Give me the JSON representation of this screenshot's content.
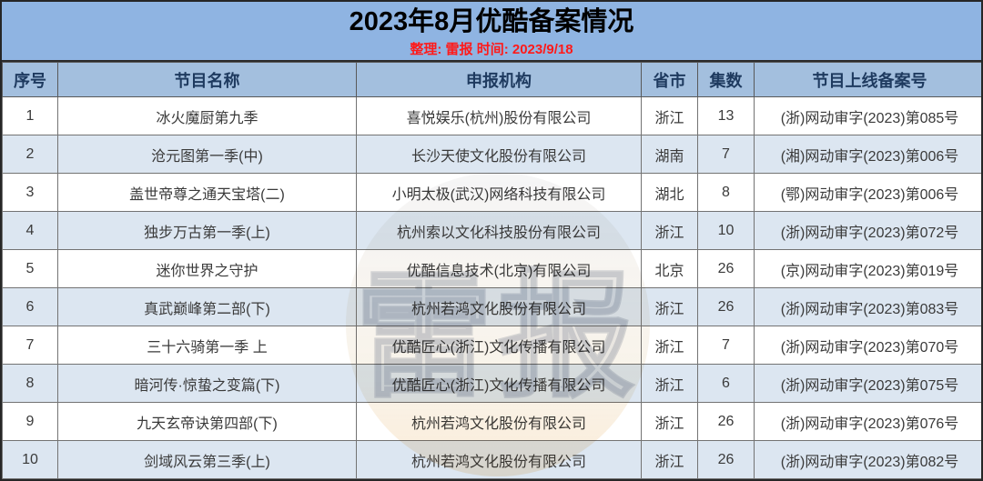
{
  "colors": {
    "title_band": "#8FB4E2",
    "header_bg": "#A3BFDE",
    "header_text": "#1E3A5F",
    "stripe": "#DCE6F1",
    "subtitle_red": "#FF1A1A"
  },
  "watermark": {
    "text": "雷报"
  },
  "chart_data": {
    "type": "table",
    "title": "2023年8月优酷备案情况",
    "subtitle": "整理: 雷报  时间: 2023/9/18",
    "columns": [
      "序号",
      "节目名称",
      "申报机构",
      "省市",
      "集数",
      "节目上线备案号"
    ],
    "rows": [
      [
        "1",
        "冰火魔厨第九季",
        "喜悦娱乐(杭州)股份有限公司",
        "浙江",
        "13",
        "(浙)网动审字(2023)第085号"
      ],
      [
        "2",
        "沧元图第一季(中)",
        "长沙天使文化股份有限公司",
        "湖南",
        "7",
        "(湘)网动审字(2023)第006号"
      ],
      [
        "3",
        "盖世帝尊之通天宝塔(二)",
        "小明太极(武汉)网络科技有限公司",
        "湖北",
        "8",
        "(鄂)网动审字(2023)第006号"
      ],
      [
        "4",
        "独步万古第一季(上)",
        "杭州索以文化科技股份有限公司",
        "浙江",
        "10",
        "(浙)网动审字(2023)第072号"
      ],
      [
        "5",
        "迷你世界之守护",
        "优酷信息技术(北京)有限公司",
        "北京",
        "26",
        "(京)网动审字(2023)第019号"
      ],
      [
        "6",
        "真武巅峰第二部(下)",
        "杭州若鸿文化股份有限公司",
        "浙江",
        "26",
        "(浙)网动审字(2023)第083号"
      ],
      [
        "7",
        "三十六骑第一季 上",
        "优酷匠心(浙江)文化传播有限公司",
        "浙江",
        "7",
        "(浙)网动审字(2023)第070号"
      ],
      [
        "8",
        "暗河传·惊蛰之变篇(下)",
        "优酷匠心(浙江)文化传播有限公司",
        "浙江",
        "6",
        "(浙)网动审字(2023)第075号"
      ],
      [
        "9",
        "九天玄帝诀第四部(下)",
        "杭州若鸿文化股份有限公司",
        "浙江",
        "26",
        "(浙)网动审字(2023)第076号"
      ],
      [
        "10",
        "剑域风云第三季(上)",
        "杭州若鸿文化股份有限公司",
        "浙江",
        "26",
        "(浙)网动审字(2023)第082号"
      ]
    ]
  }
}
